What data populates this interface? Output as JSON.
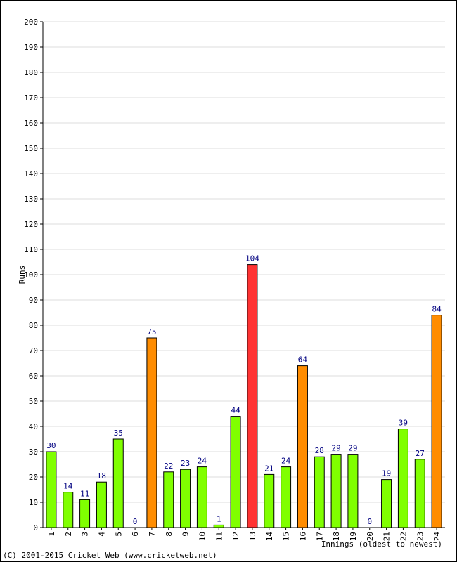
{
  "footer_text": "(C) 2001-2015 Cricket Web (www.cricketweb.net)",
  "chart_data": {
    "type": "bar",
    "title": "",
    "xlabel": "Innings (oldest to newest)",
    "ylabel": "Runs",
    "ylim": [
      0,
      200
    ],
    "yticks": [
      0,
      10,
      20,
      30,
      40,
      50,
      60,
      70,
      80,
      90,
      100,
      110,
      120,
      130,
      140,
      150,
      160,
      170,
      180,
      190,
      200
    ],
    "grid": true,
    "categories": [
      "1",
      "2",
      "3",
      "4",
      "5",
      "6",
      "7",
      "8",
      "9",
      "10",
      "11",
      "12",
      "13",
      "14",
      "15",
      "16",
      "17",
      "18",
      "19",
      "20",
      "21",
      "22",
      "23",
      "24"
    ],
    "values": [
      30,
      14,
      11,
      18,
      35,
      0,
      75,
      22,
      23,
      24,
      1,
      44,
      104,
      21,
      24,
      64,
      28,
      29,
      29,
      0,
      19,
      39,
      27,
      84
    ],
    "colors": {
      "under_50": "#80ff00",
      "fifty": "#ff8c00",
      "hundred": "#ff3333",
      "bar_outline": "#000000",
      "data_label": "#000080",
      "grid": "#dddddd"
    }
  }
}
